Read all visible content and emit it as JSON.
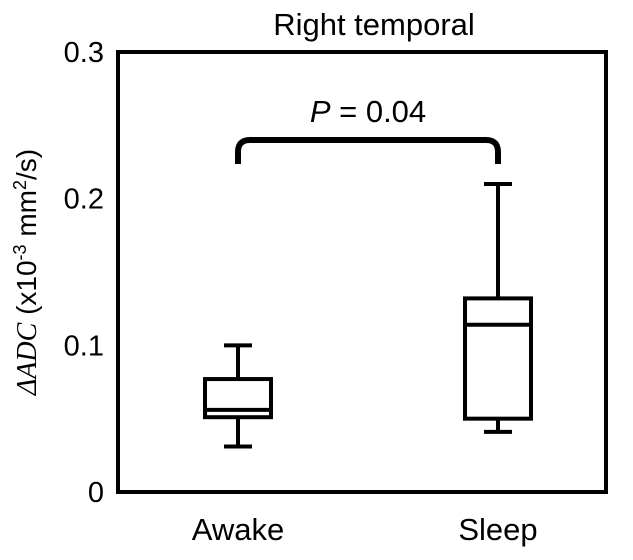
{
  "chart_data": {
    "type": "box",
    "title": "Right temporal",
    "ylabel_symbol": "ΔADC",
    "ylabel_unit_prefix": " (x10",
    "ylabel_unit_exp": "-3",
    "ylabel_unit_mid": " mm",
    "ylabel_unit_exp2": "2",
    "ylabel_unit_suffix": "/s)",
    "ylim": [
      0,
      0.3
    ],
    "yticks": [
      {
        "value": 0,
        "label": "0"
      },
      {
        "value": 0.1,
        "label": "0.1"
      },
      {
        "value": 0.2,
        "label": "0.2"
      },
      {
        "value": 0.3,
        "label": "0.3"
      }
    ],
    "categories": [
      "Awake",
      "Sleep"
    ],
    "boxes": [
      {
        "category": "Awake",
        "min": 0.031,
        "q1": 0.051,
        "median": 0.056,
        "q3": 0.077,
        "max": 0.1
      },
      {
        "category": "Sleep",
        "min": 0.041,
        "q1": 0.05,
        "median": 0.114,
        "q3": 0.132,
        "max": 0.21
      }
    ],
    "annotation": {
      "p_symbol": "P",
      "p_rest": " = 0.04",
      "between": [
        "Awake",
        "Sleep"
      ],
      "bracket_level": 0.24
    },
    "grid": false,
    "legend": "none"
  }
}
